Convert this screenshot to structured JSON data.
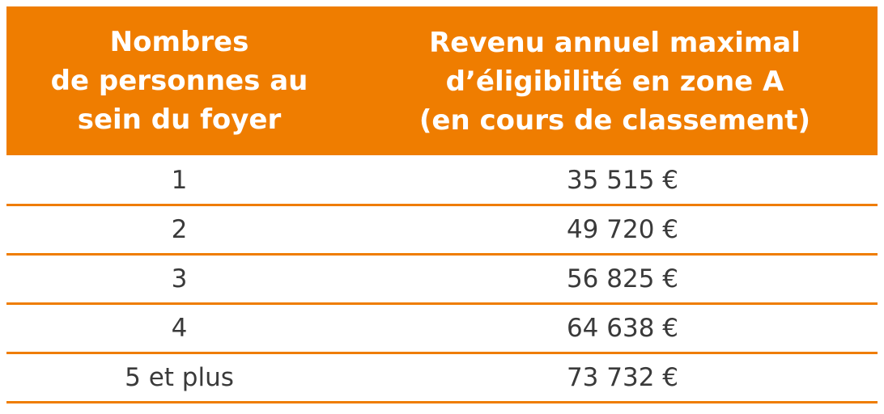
{
  "colors": {
    "accent": "#ef7d00",
    "header_text": "#ffffff",
    "body_text": "#3a3a3a"
  },
  "table": {
    "headers": [
      "Nombres\nde personnes au\nsein du foyer",
      "Revenu annuel maximal\nd’éligibilité en zone A\n(en cours de classement)"
    ],
    "rows": [
      {
        "persons": "1",
        "income": "35 515 €"
      },
      {
        "persons": "2",
        "income": "49 720 €"
      },
      {
        "persons": "3",
        "income": "56 825 €"
      },
      {
        "persons": "4",
        "income": "64 638 €"
      },
      {
        "persons": "5 et plus",
        "income": "73 732 €"
      }
    ]
  }
}
